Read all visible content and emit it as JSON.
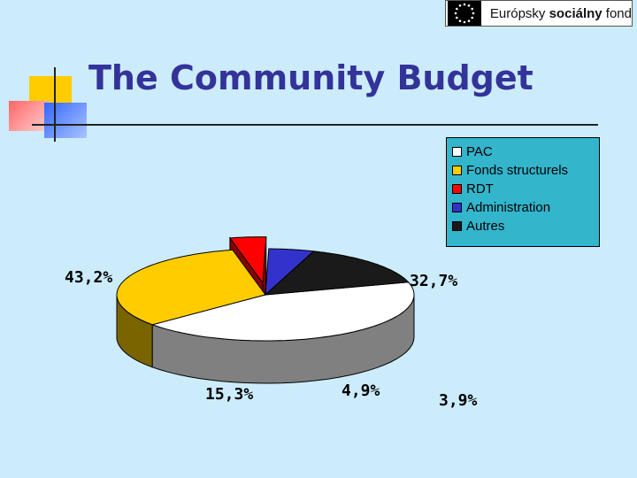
{
  "header": {
    "logo_text_regular": "Európsky",
    "logo_text_bold": "sociálny",
    "logo_text_end": "fond",
    "logo_icon": "eu-stars-flag-icon"
  },
  "slide": {
    "title": "The Community Budget"
  },
  "chart_data": {
    "type": "pie",
    "style": "3d-exploded",
    "legend_position": "top-right",
    "categories": [
      "PAC",
      "Fonds structurels",
      "RDT",
      "Administration",
      "Autres"
    ],
    "values": [
      43.2,
      32.7,
      3.9,
      4.9,
      15.3
    ],
    "labels": [
      "43,2%",
      "32,7%",
      "3,9%",
      "4,9%",
      "15,3%"
    ],
    "colors": [
      "#ffffff",
      "#ffcc00",
      "#ff0000",
      "#3333cc",
      "#1a1a1a"
    ],
    "side_colors": [
      "#808080",
      "#7a6400",
      "#880000",
      "#1a1a66",
      "#0a0a0a"
    ]
  }
}
